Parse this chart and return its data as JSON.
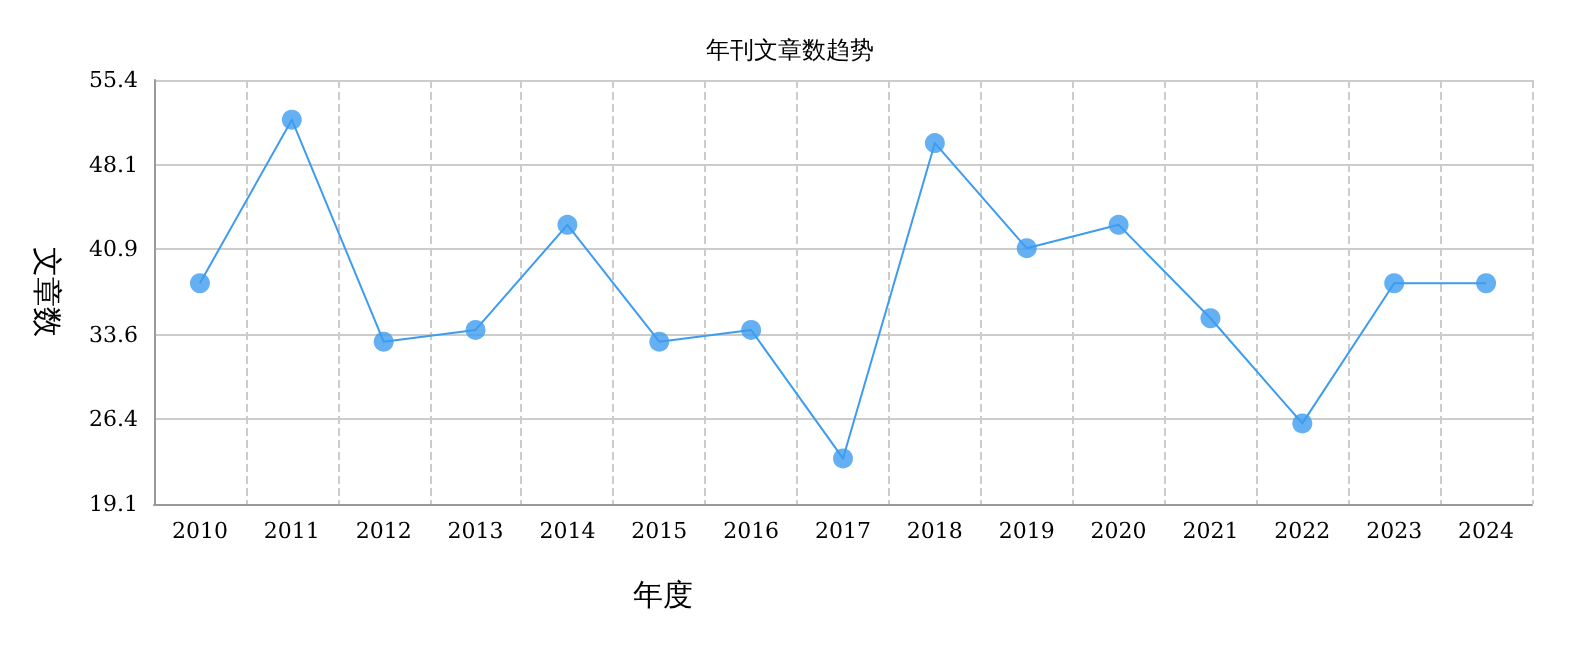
{
  "chart_data": {
    "type": "line",
    "title": "年刊文章数趋势",
    "xlabel": "年度",
    "ylabel": "文章数",
    "categories": [
      "2010",
      "2011",
      "2012",
      "2013",
      "2014",
      "2015",
      "2016",
      "2017",
      "2018",
      "2019",
      "2020",
      "2021",
      "2022",
      "2023",
      "2024"
    ],
    "series": [
      {
        "color": "#3d9cf0",
        "values": [
          38,
          52,
          33,
          34,
          43,
          33,
          34,
          23,
          50,
          41,
          43,
          35,
          26,
          38,
          38
        ]
      }
    ],
    "ylim": [
      19.1,
      55.4
    ],
    "yticks": [
      19.1,
      26.4,
      33.6,
      40.9,
      48.1,
      55.4
    ],
    "grid": true,
    "marker": "circle",
    "line_style": "solid"
  }
}
